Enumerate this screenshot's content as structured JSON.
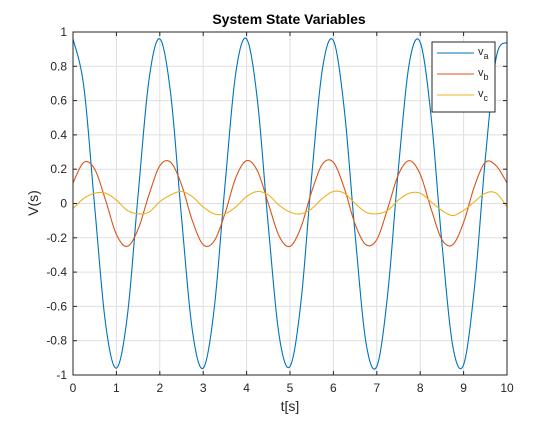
{
  "chart_data": {
    "type": "line",
    "title": "System State Variables",
    "xlabel": "t[s]",
    "ylabel": "V(s)",
    "xlim": [
      0,
      10
    ],
    "ylim": [
      -1,
      1
    ],
    "grid": true,
    "legend_position": "top-right",
    "x_ticks": [
      0,
      1,
      2,
      3,
      4,
      5,
      6,
      7,
      8,
      9,
      10
    ],
    "x_tick_labels": [
      "0",
      "1",
      "2",
      "3",
      "4",
      "5",
      "6",
      "7",
      "8",
      "9",
      "10"
    ],
    "y_ticks": [
      -1,
      -0.8,
      -0.6,
      -0.4,
      -0.2,
      0,
      0.2,
      0.4,
      0.6,
      0.8,
      1
    ],
    "y_tick_labels": [
      "-1",
      "-0.8",
      "-0.6",
      "-0.4",
      "-0.2",
      "0",
      "0.2",
      "0.4",
      "0.6",
      "0.8",
      "1"
    ],
    "series": [
      {
        "name": "v_a",
        "legend_base": "v",
        "legend_sub": "a",
        "color": "#0072BD",
        "x": [
          0,
          0.25,
          0.5,
          0.75,
          1.0,
          1.25,
          1.5,
          1.75,
          2.0,
          2.25,
          2.5,
          2.75,
          3.0,
          3.25,
          3.5,
          3.75,
          4.0,
          4.25,
          4.5,
          4.75,
          5.0,
          5.25,
          5.5,
          5.75,
          6.0,
          6.25,
          6.5,
          6.75,
          7.0,
          7.25,
          7.5,
          7.75,
          8.0,
          8.25,
          8.5,
          8.75,
          9.0,
          9.25,
          9.5,
          9.75,
          10.0
        ],
        "values": [
          0.96,
          0.68,
          -0.02,
          -0.7,
          -0.96,
          -0.66,
          0.05,
          0.72,
          0.96,
          0.64,
          -0.08,
          -0.74,
          -0.96,
          -0.62,
          0.1,
          0.76,
          0.96,
          0.6,
          -0.13,
          -0.77,
          -0.95,
          -0.58,
          0.16,
          0.79,
          0.95,
          0.55,
          -0.18,
          -0.81,
          -0.95,
          -0.53,
          0.21,
          0.82,
          0.94,
          0.51,
          -0.23,
          -0.83,
          -0.94,
          -0.49,
          0.26,
          0.85,
          0.94
        ]
      },
      {
        "name": "v_b",
        "legend_base": "v",
        "legend_sub": "b",
        "color": "#D95319",
        "x": [
          0,
          0.25,
          0.5,
          0.75,
          1.0,
          1.25,
          1.5,
          1.75,
          2.0,
          2.25,
          2.5,
          2.75,
          3.0,
          3.25,
          3.5,
          3.75,
          4.0,
          4.25,
          4.5,
          4.75,
          5.0,
          5.25,
          5.5,
          5.75,
          6.0,
          6.25,
          6.5,
          6.75,
          7.0,
          7.25,
          7.5,
          7.75,
          8.0,
          8.25,
          8.5,
          8.75,
          9.0,
          9.25,
          9.5,
          9.75,
          10.0
        ],
        "values": [
          0.12,
          0.24,
          0.2,
          0.02,
          -0.18,
          -0.25,
          -0.15,
          0.05,
          0.22,
          0.24,
          0.11,
          -0.1,
          -0.24,
          -0.22,
          -0.06,
          0.15,
          0.25,
          0.19,
          0.0,
          -0.19,
          -0.25,
          -0.14,
          0.07,
          0.23,
          0.24,
          0.09,
          -0.12,
          -0.24,
          -0.21,
          -0.03,
          0.17,
          0.25,
          0.17,
          -0.03,
          -0.21,
          -0.24,
          -0.11,
          0.1,
          0.24,
          0.22,
          0.12
        ]
      },
      {
        "name": "v_c",
        "legend_base": "v",
        "legend_sub": "c",
        "color": "#EDB120",
        "x": [
          0,
          0.25,
          0.5,
          0.75,
          1.0,
          1.25,
          1.5,
          1.75,
          2.0,
          2.25,
          2.5,
          2.75,
          3.0,
          3.25,
          3.5,
          3.75,
          4.0,
          4.25,
          4.5,
          4.75,
          5.0,
          5.25,
          5.5,
          5.75,
          6.0,
          6.25,
          6.5,
          6.75,
          7.0,
          7.25,
          7.5,
          7.75,
          8.0,
          8.25,
          8.5,
          8.75,
          9.0,
          9.25,
          9.5,
          9.75,
          10.0
        ],
        "values": [
          -0.03,
          0.03,
          0.06,
          0.06,
          0.02,
          -0.04,
          -0.06,
          -0.05,
          0.01,
          0.05,
          0.07,
          0.04,
          -0.02,
          -0.06,
          -0.06,
          -0.02,
          0.04,
          0.07,
          0.05,
          -0.01,
          -0.05,
          -0.06,
          -0.03,
          0.03,
          0.07,
          0.06,
          0.0,
          -0.05,
          -0.06,
          -0.04,
          0.02,
          0.06,
          0.06,
          0.01,
          -0.04,
          -0.07,
          -0.04,
          0.01,
          0.06,
          0.06,
          -0.02
        ]
      }
    ]
  }
}
